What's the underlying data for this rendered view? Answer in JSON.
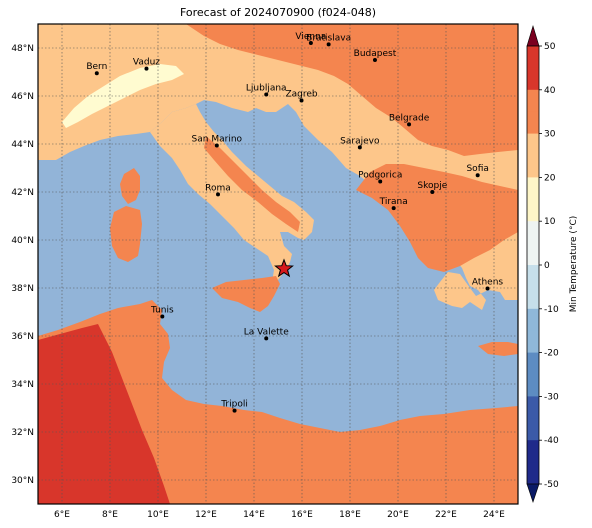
{
  "title": "Forecast of 2024070900 (f024-048)",
  "map": {
    "lon_range": [
      5,
      25
    ],
    "lat_range": [
      29,
      49
    ],
    "lon_ticks": [
      {
        "value": 6,
        "label": "6°E"
      },
      {
        "value": 8,
        "label": "8°E"
      },
      {
        "value": 10,
        "label": "10°E"
      },
      {
        "value": 12,
        "label": "12°E"
      },
      {
        "value": 14,
        "label": "14°E"
      },
      {
        "value": 16,
        "label": "16°E"
      },
      {
        "value": 18,
        "label": "18°E"
      },
      {
        "value": 20,
        "label": "20°E"
      },
      {
        "value": 22,
        "label": "22°E"
      },
      {
        "value": 24,
        "label": "24°E"
      }
    ],
    "lat_ticks": [
      {
        "value": 30,
        "label": "30°N"
      },
      {
        "value": 32,
        "label": "32°N"
      },
      {
        "value": 34,
        "label": "34°N"
      },
      {
        "value": 36,
        "label": "36°N"
      },
      {
        "value": 38,
        "label": "38°N"
      },
      {
        "value": 40,
        "label": "40°N"
      },
      {
        "value": 42,
        "label": "42°N"
      },
      {
        "value": 44,
        "label": "44°N"
      },
      {
        "value": 46,
        "label": "46°N"
      },
      {
        "value": 48,
        "label": "48°N"
      }
    ],
    "sea_color": "#92b4d8",
    "marker": {
      "lon": 15.25,
      "lat": 38.8,
      "color": "#d7191c"
    }
  },
  "cities": [
    {
      "name": "Bern",
      "lon": 7.45,
      "lat": 46.95
    },
    {
      "name": "Vaduz",
      "lon": 9.52,
      "lat": 47.14
    },
    {
      "name": "Vienna",
      "lon": 16.37,
      "lat": 48.21
    },
    {
      "name": "Bratislava",
      "lon": 17.11,
      "lat": 48.15
    },
    {
      "name": "Budapest",
      "lon": 19.04,
      "lat": 47.5
    },
    {
      "name": "Ljubljana",
      "lon": 14.51,
      "lat": 46.06
    },
    {
      "name": "Zagreb",
      "lon": 15.98,
      "lat": 45.81
    },
    {
      "name": "Belgrade",
      "lon": 20.46,
      "lat": 44.82
    },
    {
      "name": "San Marino",
      "lon": 12.45,
      "lat": 43.94
    },
    {
      "name": "Sarajevo",
      "lon": 18.41,
      "lat": 43.86
    },
    {
      "name": "Sofia",
      "lon": 23.32,
      "lat": 42.7
    },
    {
      "name": "Podgorica",
      "lon": 19.26,
      "lat": 42.44
    },
    {
      "name": "Skopje",
      "lon": 21.43,
      "lat": 42.0
    },
    {
      "name": "Roma",
      "lon": 12.5,
      "lat": 41.9
    },
    {
      "name": "Tirana",
      "lon": 19.82,
      "lat": 41.33
    },
    {
      "name": "Athens",
      "lon": 23.73,
      "lat": 37.98
    },
    {
      "name": "Tunis",
      "lon": 10.18,
      "lat": 36.81
    },
    {
      "name": "La Valette",
      "lon": 14.51,
      "lat": 35.9
    },
    {
      "name": "Tripoli",
      "lon": 13.19,
      "lat": 32.89
    }
  ],
  "colorbar": {
    "label": "Min Temperature (°C)",
    "ticks": [
      "-50",
      "-40",
      "-30",
      "-20",
      "-10",
      "0",
      "10",
      "20",
      "30",
      "40",
      "50"
    ],
    "colors": [
      "#1f2a8a",
      "#3b5aa8",
      "#5d8cc2",
      "#8fb8d9",
      "#c6dfea",
      "#eef4f2",
      "#fef6c8",
      "#fdc68a",
      "#f4854f",
      "#d8362b",
      "#a50f26"
    ],
    "extend_low": "#0a1a66",
    "extend_high": "#7a0020"
  },
  "temp_colors": {
    "cool": "#fffbd0",
    "mild": "#fdc68a",
    "warm": "#f4854f",
    "hot": "#d8362b"
  }
}
